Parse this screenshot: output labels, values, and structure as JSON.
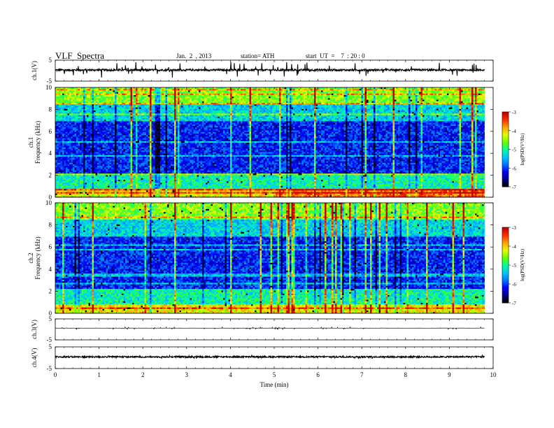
{
  "header": {
    "title": "VLF  Spectra",
    "date": "Jan.  2  , 2013",
    "station": "station= ATH",
    "start": "start  UT  =    7  : 20 : 0"
  },
  "colors": {
    "colormap": [
      "#000000",
      "#00008c",
      "#0000ff",
      "#0078ff",
      "#00c8ff",
      "#00ff96",
      "#64ff00",
      "#e6ff00",
      "#ffa500",
      "#ff3200",
      "#c80000",
      "#ffffff"
    ]
  },
  "chart_data": [
    {
      "type": "line",
      "name": "ch1-waveform",
      "ylabel": "ch.1(V)",
      "ylim": [
        -5,
        5
      ],
      "yticks": [
        -5,
        5
      ],
      "xlim": [
        0,
        10
      ],
      "baseline": 0.3,
      "noise": 0.45,
      "spike_amplitude": 2.5
    },
    {
      "type": "heatmap",
      "name": "ch1-spectrogram",
      "ylabel": "ch.1\nFrequency  (kHz)",
      "xlim": [
        0,
        9.8
      ],
      "ylim": [
        0,
        10
      ],
      "yticks": [
        0,
        2,
        4,
        6,
        8,
        10
      ],
      "colorbar": {
        "label": "log(PSD(V²/Hz)",
        "range": [
          -7,
          -3
        ],
        "ticks": [
          -3,
          -4,
          -5,
          -6,
          -7
        ]
      }
    },
    {
      "type": "heatmap",
      "name": "ch2-spectrogram",
      "ylabel": "ch.2\nFrequency  (kHz)",
      "xlim": [
        0,
        9.8
      ],
      "ylim": [
        0,
        10
      ],
      "yticks": [
        0,
        2,
        4,
        6,
        8,
        10
      ],
      "colorbar": {
        "label": "log(PSD(V²/Hz)",
        "range": [
          -7,
          -3
        ],
        "ticks": [
          -3,
          -4,
          -5,
          -6,
          -7
        ]
      }
    },
    {
      "type": "line",
      "name": "ch3-waveform",
      "ylabel": "ch.3(V)",
      "ylim": [
        -5,
        5
      ],
      "yticks": [
        -5,
        5
      ],
      "xlim": [
        0,
        10
      ],
      "baseline": 0.6,
      "noise": 0.05,
      "spike_amplitude": 0.4
    },
    {
      "type": "line",
      "name": "ch4-waveform",
      "ylabel": "ch.4(V)",
      "ylim": [
        -5,
        5
      ],
      "yticks": [
        -5,
        5
      ],
      "xlim": [
        0,
        10
      ],
      "baseline": 0.4,
      "noise": 0.35,
      "spike_amplitude": 0.5
    }
  ],
  "xaxis": {
    "label": "Time  (min)",
    "range": [
      0,
      10
    ],
    "ticks": [
      0,
      1,
      2,
      3,
      4,
      5,
      6,
      7,
      8,
      9,
      10
    ],
    "tick_labels": [
      "0",
      "1",
      "2",
      "3",
      "4",
      "5",
      "6",
      "7",
      "8",
      "9",
      "10"
    ]
  }
}
